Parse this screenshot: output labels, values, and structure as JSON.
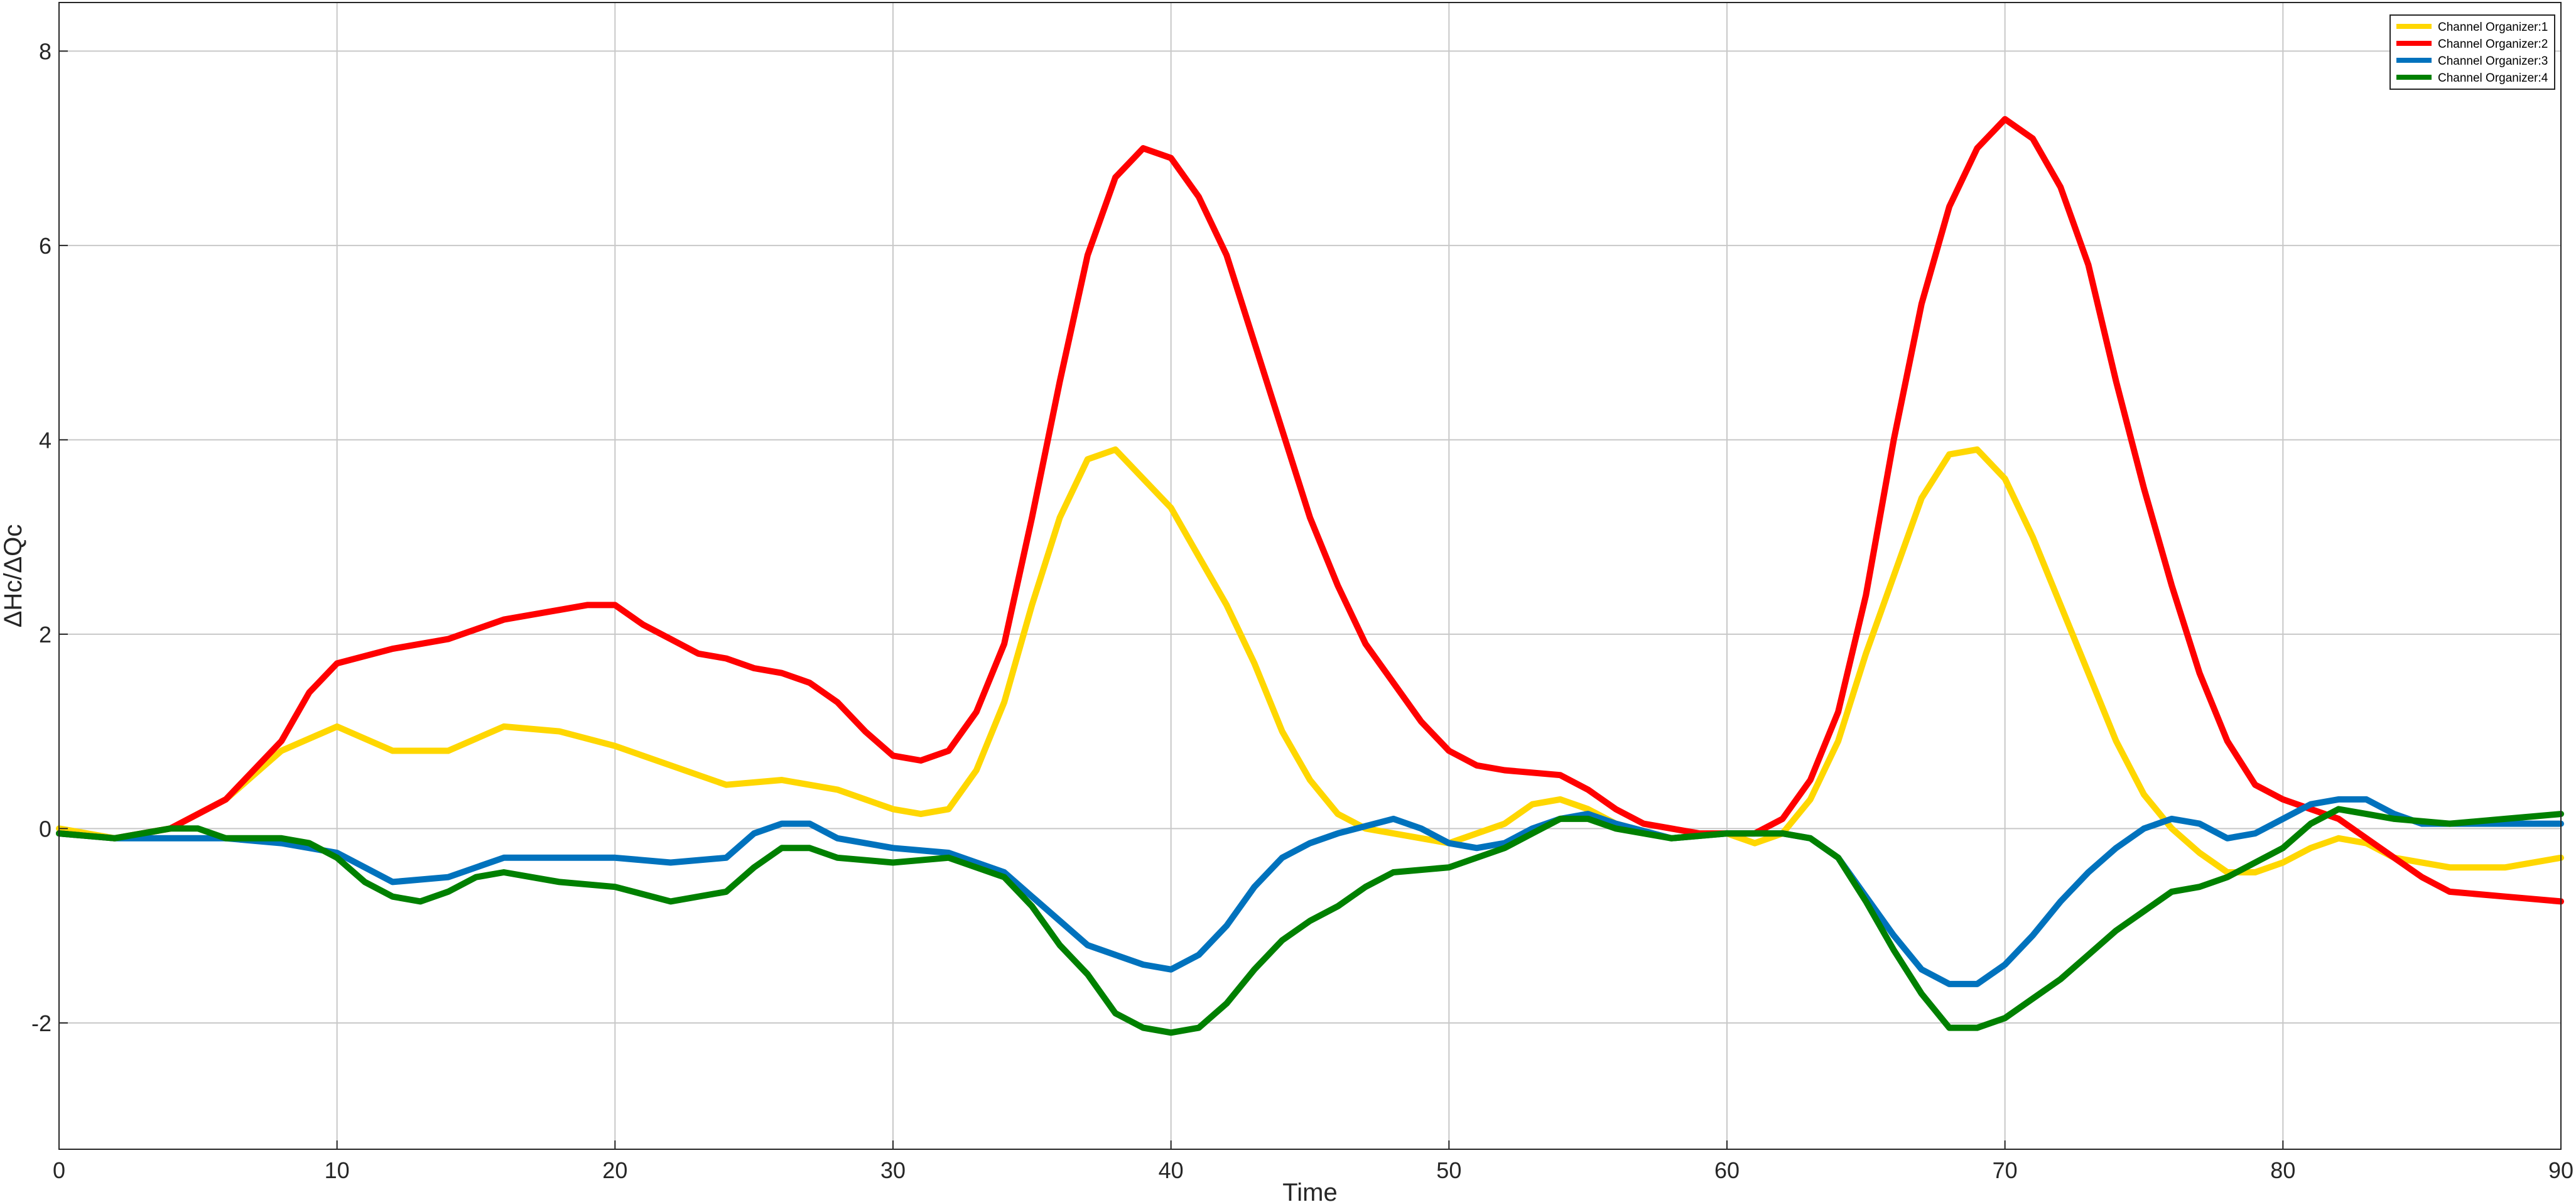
{
  "chart_data": {
    "type": "line",
    "title": "",
    "xlabel": "Time",
    "ylabel": "ΔHc/ΔQc",
    "xlim": [
      0,
      90
    ],
    "ylim": [
      -3.3,
      8.5
    ],
    "xticks": [
      0,
      10,
      20,
      30,
      40,
      50,
      60,
      70,
      80,
      90
    ],
    "yticks": [
      -2,
      0,
      2,
      4,
      6,
      8
    ],
    "grid": true,
    "legend": "top-right",
    "series": [
      {
        "name": "Channel Organizer:1",
        "color": "#FFD700",
        "points": [
          [
            0,
            0
          ],
          [
            2,
            -0.1
          ],
          [
            4,
            0
          ],
          [
            6,
            0.3
          ],
          [
            8,
            0.8
          ],
          [
            10,
            1.05
          ],
          [
            12,
            0.8
          ],
          [
            14,
            0.8
          ],
          [
            16,
            1.05
          ],
          [
            18,
            1.0
          ],
          [
            20,
            0.85
          ],
          [
            22,
            0.65
          ],
          [
            24,
            0.45
          ],
          [
            26,
            0.5
          ],
          [
            28,
            0.4
          ],
          [
            30,
            0.2
          ],
          [
            31,
            0.15
          ],
          [
            32,
            0.2
          ],
          [
            33,
            0.6
          ],
          [
            34,
            1.3
          ],
          [
            35,
            2.3
          ],
          [
            36,
            3.2
          ],
          [
            37,
            3.8
          ],
          [
            38,
            3.9
          ],
          [
            39,
            3.6
          ],
          [
            40,
            3.3
          ],
          [
            41,
            2.8
          ],
          [
            42,
            2.3
          ],
          [
            43,
            1.7
          ],
          [
            44,
            1.0
          ],
          [
            45,
            0.5
          ],
          [
            46,
            0.15
          ],
          [
            47,
            0
          ],
          [
            48,
            -0.05
          ],
          [
            50,
            -0.15
          ],
          [
            52,
            0.05
          ],
          [
            53,
            0.25
          ],
          [
            54,
            0.3
          ],
          [
            55,
            0.2
          ],
          [
            56,
            0.05
          ],
          [
            58,
            -0.1
          ],
          [
            60,
            -0.05
          ],
          [
            61,
            -0.15
          ],
          [
            62,
            -0.05
          ],
          [
            63,
            0.3
          ],
          [
            64,
            0.9
          ],
          [
            65,
            1.8
          ],
          [
            66,
            2.6
          ],
          [
            67,
            3.4
          ],
          [
            68,
            3.85
          ],
          [
            69,
            3.9
          ],
          [
            70,
            3.6
          ],
          [
            71,
            3.0
          ],
          [
            72,
            2.3
          ],
          [
            73,
            1.6
          ],
          [
            74,
            0.9
          ],
          [
            75,
            0.35
          ],
          [
            76,
            0
          ],
          [
            77,
            -0.25
          ],
          [
            78,
            -0.45
          ],
          [
            79,
            -0.45
          ],
          [
            80,
            -0.35
          ],
          [
            81,
            -0.2
          ],
          [
            82,
            -0.1
          ],
          [
            83,
            -0.15
          ],
          [
            84,
            -0.3
          ],
          [
            86,
            -0.4
          ],
          [
            88,
            -0.4
          ],
          [
            90,
            -0.3
          ]
        ]
      },
      {
        "name": "Channel Organizer:2",
        "color": "#FF0000",
        "points": [
          [
            0,
            -0.05
          ],
          [
            2,
            -0.1
          ],
          [
            4,
            0
          ],
          [
            6,
            0.3
          ],
          [
            8,
            0.9
          ],
          [
            9,
            1.4
          ],
          [
            10,
            1.7
          ],
          [
            12,
            1.85
          ],
          [
            14,
            1.95
          ],
          [
            16,
            2.15
          ],
          [
            18,
            2.25
          ],
          [
            19,
            2.3
          ],
          [
            20,
            2.3
          ],
          [
            21,
            2.1
          ],
          [
            22,
            1.95
          ],
          [
            23,
            1.8
          ],
          [
            24,
            1.75
          ],
          [
            25,
            1.65
          ],
          [
            26,
            1.6
          ],
          [
            27,
            1.5
          ],
          [
            28,
            1.3
          ],
          [
            29,
            1.0
          ],
          [
            30,
            0.75
          ],
          [
            31,
            0.7
          ],
          [
            32,
            0.8
          ],
          [
            33,
            1.2
          ],
          [
            34,
            1.9
          ],
          [
            35,
            3.2
          ],
          [
            36,
            4.6
          ],
          [
            37,
            5.9
          ],
          [
            38,
            6.7
          ],
          [
            39,
            7.0
          ],
          [
            40,
            6.9
          ],
          [
            41,
            6.5
          ],
          [
            42,
            5.9
          ],
          [
            43,
            5.0
          ],
          [
            44,
            4.1
          ],
          [
            45,
            3.2
          ],
          [
            46,
            2.5
          ],
          [
            47,
            1.9
          ],
          [
            48,
            1.5
          ],
          [
            49,
            1.1
          ],
          [
            50,
            0.8
          ],
          [
            51,
            0.65
          ],
          [
            52,
            0.6
          ],
          [
            54,
            0.55
          ],
          [
            55,
            0.4
          ],
          [
            56,
            0.2
          ],
          [
            57,
            0.05
          ],
          [
            58,
            0
          ],
          [
            59,
            -0.05
          ],
          [
            60,
            -0.05
          ],
          [
            61,
            -0.05
          ],
          [
            62,
            0.1
          ],
          [
            63,
            0.5
          ],
          [
            64,
            1.2
          ],
          [
            65,
            2.4
          ],
          [
            66,
            4.0
          ],
          [
            67,
            5.4
          ],
          [
            68,
            6.4
          ],
          [
            69,
            7.0
          ],
          [
            70,
            7.3
          ],
          [
            71,
            7.1
          ],
          [
            72,
            6.6
          ],
          [
            73,
            5.8
          ],
          [
            74,
            4.6
          ],
          [
            75,
            3.5
          ],
          [
            76,
            2.5
          ],
          [
            77,
            1.6
          ],
          [
            78,
            0.9
          ],
          [
            79,
            0.45
          ],
          [
            80,
            0.3
          ],
          [
            81,
            0.2
          ],
          [
            82,
            0.1
          ],
          [
            83,
            -0.1
          ],
          [
            84,
            -0.3
          ],
          [
            85,
            -0.5
          ],
          [
            86,
            -0.65
          ],
          [
            88,
            -0.7
          ],
          [
            90,
            -0.75
          ]
        ]
      },
      {
        "name": "Channel Organizer:3",
        "color": "#0072BD",
        "points": [
          [
            0,
            -0.05
          ],
          [
            2,
            -0.1
          ],
          [
            4,
            -0.1
          ],
          [
            6,
            -0.1
          ],
          [
            8,
            -0.15
          ],
          [
            10,
            -0.25
          ],
          [
            12,
            -0.55
          ],
          [
            14,
            -0.5
          ],
          [
            16,
            -0.3
          ],
          [
            18,
            -0.3
          ],
          [
            20,
            -0.3
          ],
          [
            22,
            -0.35
          ],
          [
            24,
            -0.3
          ],
          [
            25,
            -0.05
          ],
          [
            26,
            0.05
          ],
          [
            27,
            0.05
          ],
          [
            28,
            -0.1
          ],
          [
            30,
            -0.2
          ],
          [
            32,
            -0.25
          ],
          [
            34,
            -0.45
          ],
          [
            35,
            -0.7
          ],
          [
            36,
            -0.95
          ],
          [
            37,
            -1.2
          ],
          [
            38,
            -1.3
          ],
          [
            39,
            -1.4
          ],
          [
            40,
            -1.45
          ],
          [
            41,
            -1.3
          ],
          [
            42,
            -1.0
          ],
          [
            43,
            -0.6
          ],
          [
            44,
            -0.3
          ],
          [
            45,
            -0.15
          ],
          [
            46,
            -0.05
          ],
          [
            48,
            0.1
          ],
          [
            49,
            0.0
          ],
          [
            50,
            -0.15
          ],
          [
            51,
            -0.2
          ],
          [
            52,
            -0.15
          ],
          [
            53,
            0
          ],
          [
            54,
            0.1
          ],
          [
            55,
            0.15
          ],
          [
            56,
            0.05
          ],
          [
            58,
            -0.1
          ],
          [
            60,
            -0.05
          ],
          [
            62,
            -0.05
          ],
          [
            63,
            -0.1
          ],
          [
            64,
            -0.3
          ],
          [
            65,
            -0.7
          ],
          [
            66,
            -1.1
          ],
          [
            67,
            -1.45
          ],
          [
            68,
            -1.6
          ],
          [
            69,
            -1.6
          ],
          [
            70,
            -1.4
          ],
          [
            71,
            -1.1
          ],
          [
            72,
            -0.75
          ],
          [
            73,
            -0.45
          ],
          [
            74,
            -0.2
          ],
          [
            75,
            0
          ],
          [
            76,
            0.1
          ],
          [
            77,
            0.05
          ],
          [
            78,
            -0.1
          ],
          [
            79,
            -0.05
          ],
          [
            80,
            0.1
          ],
          [
            81,
            0.25
          ],
          [
            82,
            0.3
          ],
          [
            83,
            0.3
          ],
          [
            84,
            0.15
          ],
          [
            85,
            0.05
          ],
          [
            86,
            0.05
          ],
          [
            88,
            0.05
          ],
          [
            90,
            0.05
          ]
        ]
      },
      {
        "name": "Channel Organizer:4",
        "color": "#008000",
        "points": [
          [
            0,
            -0.05
          ],
          [
            2,
            -0.1
          ],
          [
            4,
            0
          ],
          [
            5,
            0
          ],
          [
            6,
            -0.1
          ],
          [
            8,
            -0.1
          ],
          [
            9,
            -0.15
          ],
          [
            10,
            -0.3
          ],
          [
            11,
            -0.55
          ],
          [
            12,
            -0.7
          ],
          [
            13,
            -0.75
          ],
          [
            14,
            -0.65
          ],
          [
            15,
            -0.5
          ],
          [
            16,
            -0.45
          ],
          [
            18,
            -0.55
          ],
          [
            20,
            -0.6
          ],
          [
            22,
            -0.75
          ],
          [
            24,
            -0.65
          ],
          [
            25,
            -0.4
          ],
          [
            26,
            -0.2
          ],
          [
            27,
            -0.2
          ],
          [
            28,
            -0.3
          ],
          [
            30,
            -0.35
          ],
          [
            32,
            -0.3
          ],
          [
            34,
            -0.5
          ],
          [
            35,
            -0.8
          ],
          [
            36,
            -1.2
          ],
          [
            37,
            -1.5
          ],
          [
            38,
            -1.9
          ],
          [
            39,
            -2.05
          ],
          [
            40,
            -2.1
          ],
          [
            41,
            -2.05
          ],
          [
            42,
            -1.8
          ],
          [
            43,
            -1.45
          ],
          [
            44,
            -1.15
          ],
          [
            45,
            -0.95
          ],
          [
            46,
            -0.8
          ],
          [
            47,
            -0.6
          ],
          [
            48,
            -0.45
          ],
          [
            50,
            -0.4
          ],
          [
            52,
            -0.2
          ],
          [
            53,
            -0.05
          ],
          [
            54,
            0.1
          ],
          [
            55,
            0.1
          ],
          [
            56,
            0
          ],
          [
            58,
            -0.1
          ],
          [
            60,
            -0.05
          ],
          [
            62,
            -0.05
          ],
          [
            63,
            -0.1
          ],
          [
            64,
            -0.3
          ],
          [
            65,
            -0.75
          ],
          [
            66,
            -1.25
          ],
          [
            67,
            -1.7
          ],
          [
            68,
            -2.05
          ],
          [
            69,
            -2.05
          ],
          [
            70,
            -1.95
          ],
          [
            71,
            -1.75
          ],
          [
            72,
            -1.55
          ],
          [
            73,
            -1.3
          ],
          [
            74,
            -1.05
          ],
          [
            75,
            -0.85
          ],
          [
            76,
            -0.65
          ],
          [
            77,
            -0.6
          ],
          [
            78,
            -0.5
          ],
          [
            79,
            -0.35
          ],
          [
            80,
            -0.2
          ],
          [
            81,
            0.05
          ],
          [
            82,
            0.2
          ],
          [
            83,
            0.15
          ],
          [
            84,
            0.1
          ],
          [
            86,
            0.05
          ],
          [
            88,
            0.1
          ],
          [
            90,
            0.15
          ]
        ]
      }
    ]
  }
}
